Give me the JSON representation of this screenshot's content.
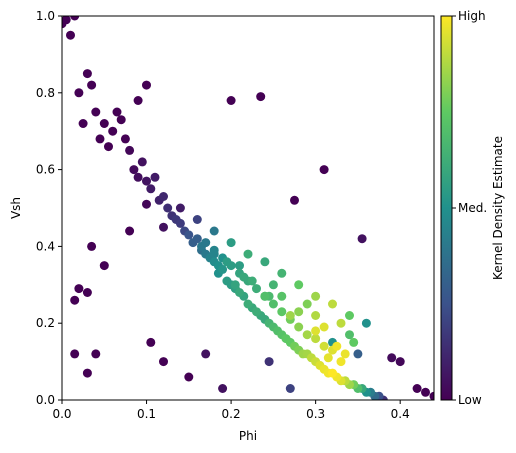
{
  "chart_data": {
    "type": "scatter",
    "title": "",
    "xlabel": "Phi",
    "ylabel": "Vsh",
    "xlim": [
      0.0,
      0.44
    ],
    "ylim": [
      0.0,
      1.0
    ],
    "xticks": [
      0.0,
      0.1,
      0.2,
      0.3,
      0.4
    ],
    "xtick_labels": [
      "0.0",
      "0.1",
      "0.2",
      "0.3",
      "0.4"
    ],
    "yticks": [
      0.0,
      0.2,
      0.4,
      0.6,
      0.8,
      1.0
    ],
    "ytick_labels": [
      "0.0",
      "0.2",
      "0.4",
      "0.6",
      "0.8",
      "1.0"
    ],
    "grid": false,
    "colormap": "viridis",
    "colormap_stops": [
      "#440154",
      "#3b528b",
      "#21918c",
      "#5ec962",
      "#fde725"
    ],
    "colorbar": {
      "label": "Kernel Density Estimate",
      "tick_labels": [
        "Low",
        "Med.",
        "High"
      ]
    },
    "series": [
      {
        "x": [
          0.0,
          0.005,
          0.01,
          0.015,
          0.02,
          0.03,
          0.025,
          0.035,
          0.04,
          0.045,
          0.05,
          0.055,
          0.06,
          0.065,
          0.07,
          0.075,
          0.08,
          0.085,
          0.09,
          0.095,
          0.1,
          0.105,
          0.11,
          0.115,
          0.12,
          0.125,
          0.13,
          0.135,
          0.14,
          0.145,
          0.15,
          0.155,
          0.16,
          0.165,
          0.17,
          0.175,
          0.18,
          0.185,
          0.19,
          0.195,
          0.2,
          0.205,
          0.21,
          0.215,
          0.22,
          0.225,
          0.23,
          0.235,
          0.24,
          0.245,
          0.25,
          0.255,
          0.26,
          0.265,
          0.27,
          0.275,
          0.28,
          0.285,
          0.29,
          0.295,
          0.3,
          0.305,
          0.31,
          0.315,
          0.32,
          0.325,
          0.33,
          0.335,
          0.34,
          0.345,
          0.35,
          0.355,
          0.36,
          0.365,
          0.37,
          0.375,
          0.38,
          0.1,
          0.12,
          0.14,
          0.16,
          0.18,
          0.2,
          0.22,
          0.24,
          0.26,
          0.28,
          0.3,
          0.32,
          0.34,
          0.36,
          0.05,
          0.08,
          0.035,
          0.02,
          0.015,
          0.105,
          0.12,
          0.15,
          0.17,
          0.19,
          0.245,
          0.27,
          0.32,
          0.35,
          0.42,
          0.43,
          0.44,
          0.4,
          0.39,
          0.1,
          0.09,
          0.03,
          0.04,
          0.015,
          0.03,
          0.2,
          0.235,
          0.275,
          0.31,
          0.355,
          0.18,
          0.21,
          0.25,
          0.29,
          0.33,
          0.165,
          0.195,
          0.225,
          0.26,
          0.3,
          0.34,
          0.185,
          0.215,
          0.245,
          0.28,
          0.31,
          0.345,
          0.205,
          0.24,
          0.27,
          0.3,
          0.325,
          0.335,
          0.315,
          0.33,
          0.32,
          0.31,
          0.3,
          0.29,
          0.28,
          0.27,
          0.26,
          0.25,
          0.24,
          0.23,
          0.22,
          0.21,
          0.2,
          0.19,
          0.18,
          0.17
        ],
        "y": [
          0.98,
          0.99,
          0.95,
          1.0,
          0.8,
          0.85,
          0.72,
          0.82,
          0.75,
          0.68,
          0.72,
          0.66,
          0.7,
          0.75,
          0.73,
          0.68,
          0.65,
          0.6,
          0.58,
          0.62,
          0.57,
          0.55,
          0.58,
          0.52,
          0.53,
          0.5,
          0.48,
          0.47,
          0.46,
          0.44,
          0.43,
          0.41,
          0.42,
          0.39,
          0.38,
          0.37,
          0.36,
          0.33,
          0.34,
          0.31,
          0.3,
          0.29,
          0.28,
          0.27,
          0.25,
          0.24,
          0.23,
          0.22,
          0.21,
          0.2,
          0.19,
          0.18,
          0.17,
          0.16,
          0.15,
          0.14,
          0.13,
          0.12,
          0.12,
          0.11,
          0.1,
          0.09,
          0.08,
          0.07,
          0.07,
          0.06,
          0.05,
          0.05,
          0.04,
          0.04,
          0.03,
          0.03,
          0.02,
          0.02,
          0.01,
          0.01,
          0.0,
          0.51,
          0.45,
          0.5,
          0.47,
          0.44,
          0.41,
          0.38,
          0.36,
          0.33,
          0.3,
          0.27,
          0.25,
          0.22,
          0.2,
          0.35,
          0.44,
          0.4,
          0.29,
          0.12,
          0.15,
          0.1,
          0.06,
          0.12,
          0.03,
          0.1,
          0.03,
          0.15,
          0.12,
          0.03,
          0.02,
          0.01,
          0.1,
          0.11,
          0.82,
          0.78,
          0.28,
          0.12,
          0.26,
          0.07,
          0.78,
          0.79,
          0.52,
          0.6,
          0.42,
          0.38,
          0.35,
          0.3,
          0.25,
          0.2,
          0.4,
          0.36,
          0.31,
          0.27,
          0.22,
          0.17,
          0.35,
          0.32,
          0.27,
          0.23,
          0.19,
          0.15,
          0.3,
          0.27,
          0.22,
          0.18,
          0.14,
          0.12,
          0.11,
          0.1,
          0.13,
          0.14,
          0.16,
          0.17,
          0.19,
          0.21,
          0.23,
          0.25,
          0.27,
          0.29,
          0.31,
          0.33,
          0.35,
          0.37,
          0.39,
          0.41
        ],
        "density": [
          0.0,
          0.0,
          0.0,
          0.0,
          0.0,
          0.0,
          0.0,
          0.0,
          0.0,
          0.0,
          0.0,
          0.0,
          0.0,
          0.0,
          0.0,
          0.0,
          0.02,
          0.03,
          0.04,
          0.05,
          0.06,
          0.08,
          0.08,
          0.1,
          0.12,
          0.14,
          0.15,
          0.17,
          0.18,
          0.22,
          0.26,
          0.3,
          0.3,
          0.36,
          0.4,
          0.44,
          0.48,
          0.5,
          0.52,
          0.55,
          0.55,
          0.56,
          0.6,
          0.58,
          0.62,
          0.6,
          0.62,
          0.6,
          0.6,
          0.65,
          0.68,
          0.7,
          0.72,
          0.74,
          0.75,
          0.78,
          0.8,
          0.85,
          0.86,
          0.9,
          0.92,
          0.95,
          0.97,
          0.98,
          1.0,
          0.98,
          0.95,
          0.9,
          0.85,
          0.78,
          0.7,
          0.6,
          0.5,
          0.42,
          0.35,
          0.25,
          0.15,
          0.02,
          0.05,
          0.08,
          0.2,
          0.4,
          0.55,
          0.62,
          0.6,
          0.65,
          0.75,
          0.85,
          0.9,
          0.75,
          0.5,
          0.0,
          0.0,
          0.0,
          0.0,
          0.0,
          0.0,
          0.0,
          0.0,
          0.05,
          0.05,
          0.15,
          0.2,
          0.5,
          0.3,
          0.0,
          0.0,
          0.0,
          0.02,
          0.03,
          0.0,
          0.0,
          0.0,
          0.0,
          0.0,
          0.0,
          0.0,
          0.0,
          0.0,
          0.0,
          0.05,
          0.45,
          0.55,
          0.65,
          0.8,
          0.9,
          0.4,
          0.55,
          0.62,
          0.72,
          0.88,
          0.7,
          0.5,
          0.6,
          0.68,
          0.82,
          0.95,
          0.75,
          0.58,
          0.7,
          0.85,
          0.95,
          0.98,
          0.97,
          0.96,
          0.98,
          0.95,
          0.93,
          0.9,
          0.86,
          0.82,
          0.78,
          0.74,
          0.7,
          0.66,
          0.62,
          0.6,
          0.58,
          0.55,
          0.5,
          0.45,
          0.4
        ]
      }
    ]
  }
}
